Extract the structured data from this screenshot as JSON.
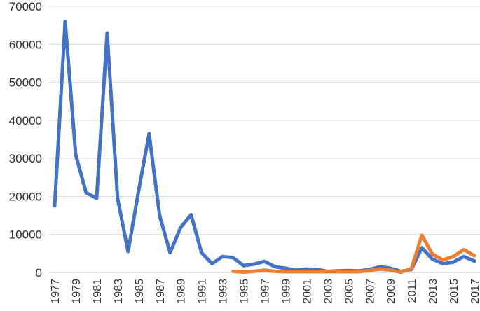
{
  "chart_data": {
    "type": "line",
    "title": "",
    "xlabel": "",
    "ylabel": "",
    "ylim": [
      0,
      70000
    ],
    "yticks": [
      0,
      10000,
      20000,
      30000,
      40000,
      50000,
      60000,
      70000
    ],
    "ytick_labels": [
      "0",
      "10000",
      "20000",
      "30000",
      "40000",
      "50000",
      "60000",
      "70000"
    ],
    "x": [
      1977,
      1978,
      1979,
      1980,
      1981,
      1982,
      1983,
      1984,
      1985,
      1986,
      1987,
      1988,
      1989,
      1990,
      1991,
      1992,
      1993,
      1994,
      1995,
      1996,
      1997,
      1998,
      1999,
      2000,
      2001,
      2002,
      2003,
      2004,
      2005,
      2006,
      2007,
      2008,
      2009,
      2010,
      2011,
      2012,
      2013,
      2014,
      2015,
      2016,
      2017
    ],
    "xtick_labels": [
      "1977",
      "1979",
      "1981",
      "1983",
      "1985",
      "1987",
      "1989",
      "1991",
      "1993",
      "1995",
      "1997",
      "1999",
      "2001",
      "2003",
      "2005",
      "2007",
      "2009",
      "2011",
      "2013",
      "2015",
      "2017"
    ],
    "grid": true,
    "legend": "none",
    "series": [
      {
        "color": "#4472c4",
        "values": [
          17500,
          66000,
          31000,
          21000,
          19500,
          63000,
          19500,
          5500,
          21500,
          36500,
          15000,
          5200,
          11800,
          15200,
          5200,
          2300,
          4200,
          3900,
          1800,
          2200,
          2900,
          1500,
          1100,
          600,
          900,
          800,
          300,
          400,
          500,
          400,
          800,
          1500,
          1100,
          300,
          800,
          6500,
          3500,
          2300,
          2700,
          4200,
          3000
        ]
      },
      {
        "color": "#ed7d31",
        "values": [
          null,
          null,
          null,
          null,
          null,
          null,
          null,
          null,
          null,
          null,
          null,
          null,
          null,
          null,
          null,
          null,
          null,
          300,
          100,
          300,
          600,
          300,
          200,
          200,
          200,
          200,
          200,
          200,
          200,
          200,
          500,
          900,
          600,
          100,
          1000,
          9800,
          4800,
          3300,
          4200,
          6000,
          4400
        ]
      }
    ]
  }
}
